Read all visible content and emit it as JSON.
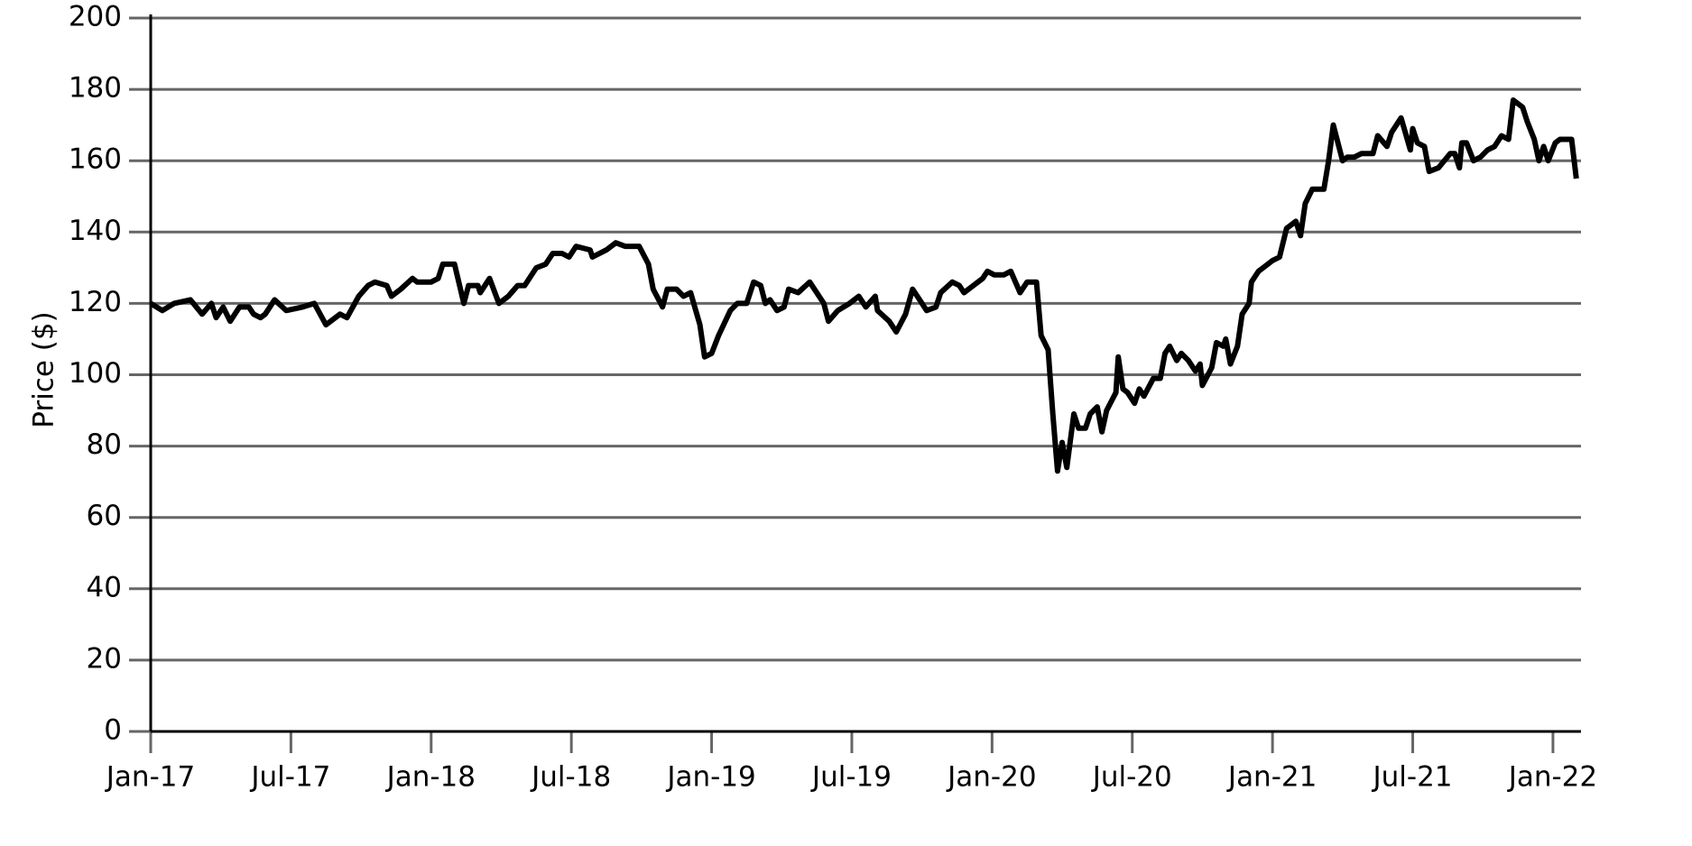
{
  "chart_data": {
    "type": "line",
    "ylabel": "Price ($)",
    "color": "#000000",
    "grid": true,
    "grid_color": "#666666",
    "xlim": [
      0,
      61.2
    ],
    "ylim": [
      0,
      200
    ],
    "xticks": [
      {
        "value": 0,
        "label": "Jan-17"
      },
      {
        "value": 6,
        "label": "Jul-17"
      },
      {
        "value": 12,
        "label": "Jan-18"
      },
      {
        "value": 18,
        "label": "Jul-18"
      },
      {
        "value": 24,
        "label": "Jan-19"
      },
      {
        "value": 30,
        "label": "Jul-19"
      },
      {
        "value": 36,
        "label": "Jan-20"
      },
      {
        "value": 42,
        "label": "Jul-20"
      },
      {
        "value": 48,
        "label": "Jan-21"
      },
      {
        "value": 54,
        "label": "Jul-21"
      },
      {
        "value": 60,
        "label": "Jan-22"
      }
    ],
    "yticks": [
      0,
      20,
      40,
      60,
      80,
      100,
      120,
      140,
      160,
      180,
      200
    ],
    "x": [
      0,
      0.5,
      1,
      1.7,
      2.2,
      2.6,
      2.8,
      3.1,
      3.4,
      3.8,
      4.2,
      4.4,
      4.7,
      4.9,
      5.3,
      5.8,
      6.5,
      7,
      7.5,
      8.1,
      8.4,
      8.9,
      9.3,
      9.6,
      10.1,
      10.3,
      10.7,
      11.2,
      11.4,
      12,
      12.3,
      12.5,
      13,
      13.4,
      13.6,
      14,
      14.1,
      14.5,
      14.9,
      15.3,
      15.7,
      16,
      16.5,
      16.9,
      17.2,
      17.6,
      17.9,
      18.2,
      18.8,
      18.9,
      19.5,
      19.9,
      20.3,
      20.9,
      21.3,
      21.5,
      21.9,
      22.1,
      22.5,
      22.8,
      23.1,
      23.5,
      23.7,
      24,
      24.3,
      24.8,
      25.1,
      25.5,
      25.8,
      26.1,
      26.3,
      26.5,
      26.8,
      27.1,
      27.3,
      27.7,
      28.2,
      28.8,
      29,
      29.4,
      29.9,
      30.3,
      30.6,
      31,
      31.1,
      31.6,
      31.9,
      32.3,
      32.6,
      32.9,
      33.2,
      33.6,
      33.8,
      34.3,
      34.6,
      34.8,
      35.2,
      35.6,
      35.8,
      36.1,
      36.5,
      36.8,
      37.2,
      37.5,
      37.9,
      38.1,
      38.4,
      38.6,
      38.8,
      39,
      39.2,
      39.5,
      39.7,
      40,
      40.2,
      40.5,
      40.7,
      40.9,
      41.3,
      41.4,
      41.6,
      41.8,
      42.1,
      42.3,
      42.5,
      42.9,
      43.2,
      43.4,
      43.6,
      43.9,
      44.1,
      44.4,
      44.7,
      44.9,
      45,
      45.4,
      45.6,
      45.9,
      46,
      46.2,
      46.5,
      46.7,
      47,
      47.1,
      47.4,
      47.8,
      48,
      48.3,
      48.6,
      49,
      49.2,
      49.4,
      49.7,
      50.2,
      50.4,
      50.6,
      51,
      51.2,
      51.5,
      51.8,
      52.3,
      52.5,
      52.9,
      53.1,
      53.5,
      53.9,
      54,
      54.2,
      54.5,
      54.7,
      55.1,
      55.6,
      55.8,
      56,
      56.1,
      56.3,
      56.6,
      56.9,
      57.2,
      57.5,
      57.8,
      58.1,
      58.3,
      58.7,
      58.9,
      59.2,
      59.4,
      59.6,
      59.8,
      60.1,
      60.3,
      60.8,
      61
    ],
    "values": [
      120,
      118,
      120,
      121,
      117,
      120,
      116,
      119,
      115,
      119,
      119,
      117,
      116,
      117,
      121,
      118,
      119,
      120,
      114,
      117,
      116,
      122,
      125,
      126,
      125,
      122,
      124,
      127,
      126,
      126,
      127,
      131,
      131,
      120,
      125,
      125,
      123,
      127,
      120,
      122,
      125,
      125,
      130,
      131,
      134,
      134,
      133,
      136,
      135,
      133,
      135,
      137,
      136,
      136,
      131,
      124,
      119,
      124,
      124,
      122,
      123,
      114,
      105,
      106,
      111,
      118,
      120,
      120,
      126,
      125,
      120,
      121,
      118,
      119,
      124,
      123,
      126,
      120,
      115,
      118,
      120,
      122,
      119,
      122,
      118,
      115,
      112,
      117,
      124,
      121,
      118,
      119,
      123,
      126,
      125,
      123,
      125,
      127,
      129,
      128,
      128,
      129,
      123,
      126,
      126,
      111,
      107,
      89,
      73,
      81,
      74,
      89,
      85,
      85,
      89,
      91,
      84,
      90,
      95,
      105,
      96,
      95,
      92,
      96,
      94,
      99,
      99,
      106,
      108,
      104,
      106,
      104,
      101,
      103,
      97,
      102,
      109,
      108,
      110,
      103,
      108,
      117,
      120,
      126,
      129,
      131,
      132,
      133,
      141,
      143,
      139,
      148,
      152,
      152,
      160,
      170,
      160,
      161,
      161,
      162,
      162,
      167,
      164,
      168,
      172,
      163,
      169,
      165,
      164,
      157,
      158,
      162,
      162,
      158,
      165,
      165,
      160,
      161,
      163,
      164,
      167,
      166,
      177,
      175,
      171,
      166,
      160,
      164,
      160,
      165,
      166,
      166,
      155
    ]
  }
}
